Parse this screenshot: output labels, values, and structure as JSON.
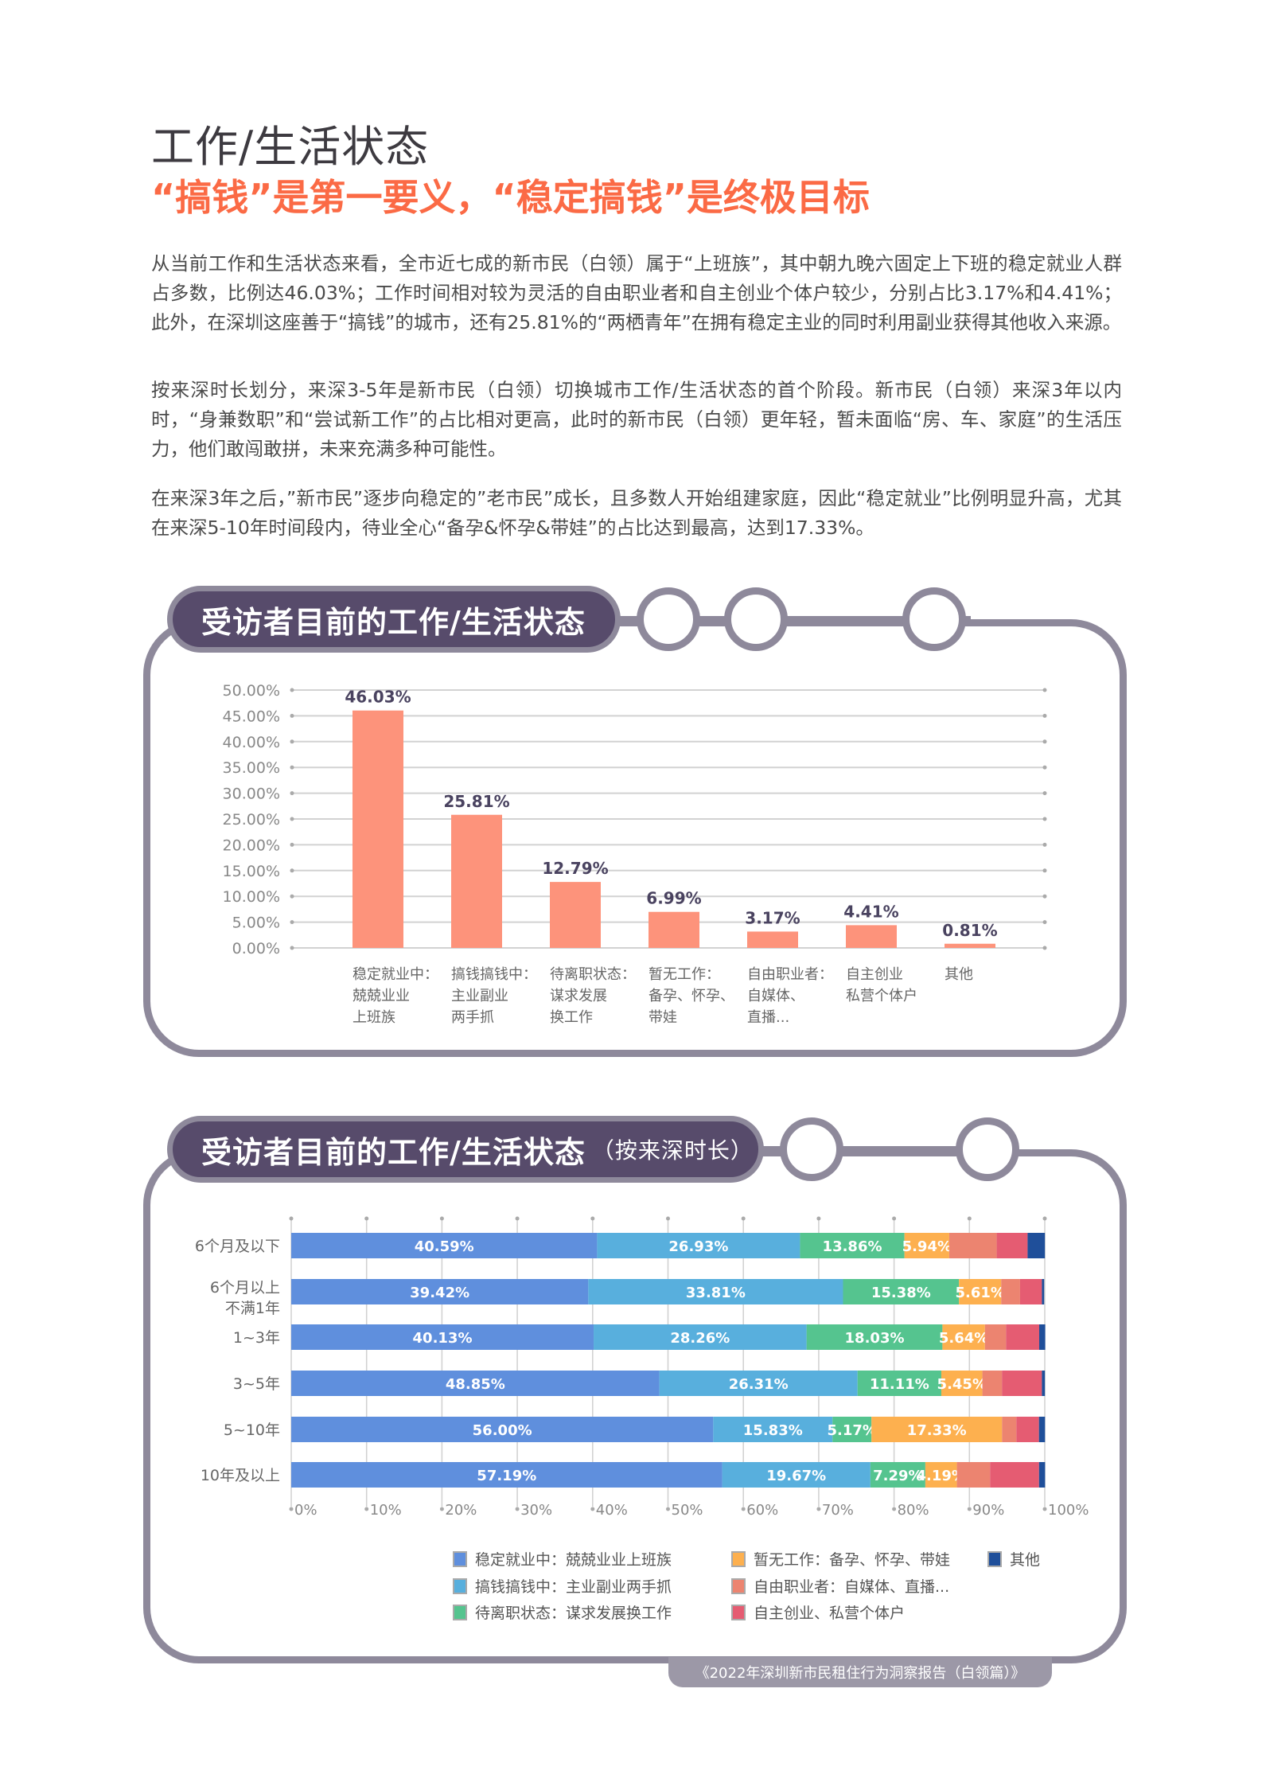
{
  "title": "工作/生活状态",
  "subtitle": "“搞钱”是第一要义，“稳定搞钱”是终极目标",
  "paragraphs": [
    "从当前工作和生活状态来看，全市近七成的新市民（白领）属于“上班族”，其中朝九晚六固定上下班的稳定就业人群占多数，比例达46.03%；工作时间相对较为灵活的自由职业者和自主创业个体户较少，分别占比3.17%和4.41%；此外，在深圳这座善于“搞钱”的城市，还有25.81%的“两栖青年”在拥有稳定主业的同时利用副业获得其他收入来源。",
    "按来深时长划分，来深3-5年是新市民（白领）切换城市工作/生活状态的首个阶段。新市民（白领）来深3年以内时，“身兼数职”和“尝试新工作”的占比相对更高，此时的新市民（白领）更年轻，暂未面临“房、车、家庭”的生活压力，他们敢闯敢拼，未来充满多种可能性。",
    "在来深3年之后，”新市民”逐步向稳定的”老市民”成长，且多数人开始组建家庭，因此“稳定就业”比例明显升高，尤其在来深5-10年时间段内，待业全心“备孕&怀孕&带娃”的占比达到最高，达到17.33%。"
  ],
  "footer": "《2022年深圳新市民租住行为洞察报告（白领篇）》",
  "chart_data": [
    {
      "type": "bar",
      "title": "受访者目前的工作/生活状态",
      "subtitle": "",
      "categories": [
        [
          "稳定就业中：",
          "兢兢业业",
          "上班族"
        ],
        [
          "搞钱搞钱中：",
          "主业副业",
          "两手抓"
        ],
        [
          "待离职状态：",
          "谋求发展",
          "换工作"
        ],
        [
          "暂无工作：",
          "备孕、怀孕、",
          "带娃"
        ],
        [
          "自由职业者：",
          "自媒体、",
          "直播..."
        ],
        [
          "自主创业",
          "私营个体户"
        ],
        [
          "其他"
        ]
      ],
      "values": [
        46.03,
        25.81,
        12.79,
        6.99,
        3.17,
        4.41,
        0.81
      ],
      "value_labels": [
        "46.03%",
        "25.81%",
        "12.79%",
        "6.99%",
        "3.17%",
        "4.41%",
        "0.81%"
      ],
      "yticks": [
        "0.00%",
        "5.00%",
        "10.00%",
        "15.00%",
        "20.00%",
        "25.00%",
        "30.00%",
        "35.00%",
        "40.00%",
        "45.00%",
        "50.00%"
      ],
      "ylim": [
        0,
        50
      ],
      "color": "#fd937b",
      "grid": true
    },
    {
      "type": "bar",
      "stacked": true,
      "orientation": "horizontal",
      "title": "受访者目前的工作/生活状态",
      "subtitle": "（按来深时长）",
      "categories": [
        [
          "6个月及以下"
        ],
        [
          "6个月以上",
          "不满1年"
        ],
        [
          "1~3年"
        ],
        [
          "3~5年"
        ],
        [
          "5~10年"
        ],
        [
          "10年及以上"
        ]
      ],
      "xticks": [
        "0%",
        "10%",
        "20%",
        "30%",
        "40%",
        "50%",
        "60%",
        "70%",
        "80%",
        "90%",
        "100%"
      ],
      "xlim": [
        0,
        100
      ],
      "legend_position": "bottom",
      "series": [
        {
          "name": "稳定就业中：兢兢业业上班族",
          "color": "#5f8fdd",
          "values": [
            40.59,
            39.42,
            40.13,
            48.85,
            56.0,
            57.19
          ],
          "labels": [
            "40.59%",
            "39.42%",
            "40.13%",
            "48.85%",
            "56.00%",
            "57.19%"
          ]
        },
        {
          "name": "搞钱搞钱中：主业副业两手抓",
          "color": "#58afdd",
          "values": [
            26.93,
            33.81,
            28.26,
            26.31,
            15.83,
            19.67
          ],
          "labels": [
            "26.93%",
            "33.81%",
            "28.26%",
            "26.31%",
            "15.83%",
            "19.67%"
          ]
        },
        {
          "name": "待离职状态：谋求发展换工作",
          "color": "#55c48f",
          "values": [
            13.86,
            15.38,
            18.03,
            11.11,
            5.17,
            7.29
          ],
          "labels": [
            "13.86%",
            "15.38%",
            "18.03%",
            "11.11%",
            "5.17%",
            "7.29%"
          ]
        },
        {
          "name": "暂无工作：备孕、怀孕、带娃",
          "color": "#fdb04f",
          "values": [
            5.94,
            5.61,
            5.64,
            5.45,
            17.33,
            4.19
          ],
          "labels": [
            "5.94%",
            "5.61%",
            "5.64%",
            "5.45%",
            "17.33%",
            "4.19%"
          ]
        },
        {
          "name": "自由职业者：自媒体、直播...",
          "color": "#ec8470",
          "values": [
            6.3,
            2.5,
            2.8,
            2.6,
            1.9,
            4.4
          ],
          "labels": [
            "",
            "",
            "",
            "",
            "",
            ""
          ]
        },
        {
          "name": "自主创业、私营个体户",
          "color": "#e55c72",
          "values": [
            4.1,
            2.9,
            4.4,
            5.3,
            3.0,
            6.5
          ],
          "labels": [
            "",
            "",
            "",
            "",
            "",
            ""
          ]
        },
        {
          "name": "其他",
          "color": "#1f4f9a",
          "values": [
            2.3,
            0.3,
            0.8,
            0.4,
            0.8,
            0.8
          ],
          "labels": [
            "",
            "",
            "",
            "",
            "",
            ""
          ]
        }
      ]
    }
  ]
}
